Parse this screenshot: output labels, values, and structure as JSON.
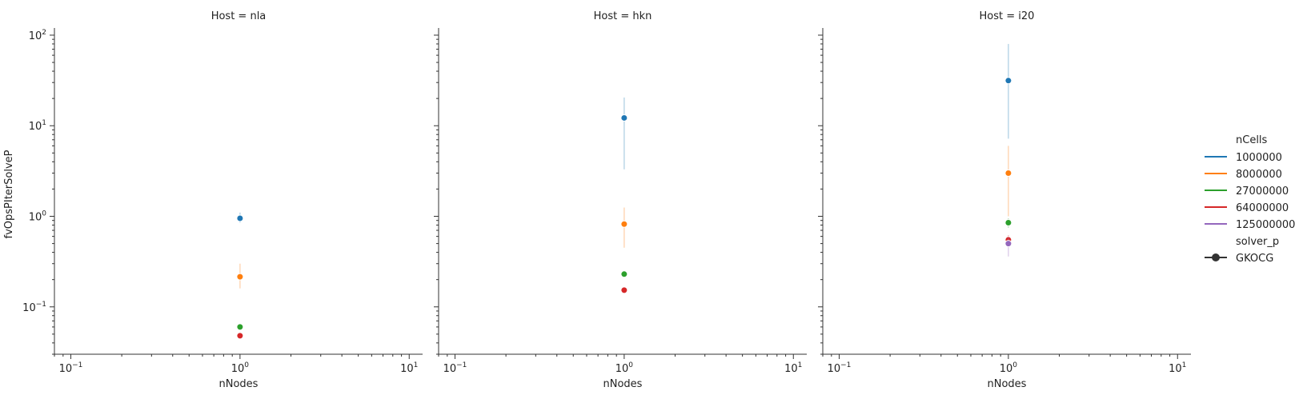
{
  "chart_data": {
    "type": "scatter",
    "x_scale": "log",
    "y_scale": "log",
    "xlim": [
      0.08,
      12
    ],
    "ylim": [
      0.03,
      120
    ],
    "xlabel": "nNodes",
    "ylabel": "fvOpsPIterSolveP",
    "x_ticks": [
      {
        "value": 0.1,
        "base": "10",
        "exp": "−1"
      },
      {
        "value": 1,
        "base": "10",
        "exp": "0"
      },
      {
        "value": 10,
        "base": "10",
        "exp": "1"
      }
    ],
    "y_ticks": [
      {
        "value": 0.1,
        "base": "10",
        "exp": "−1"
      },
      {
        "value": 1,
        "base": "10",
        "exp": "0"
      },
      {
        "value": 10,
        "base": "10",
        "exp": "1"
      },
      {
        "value": 100,
        "base": "10",
        "exp": "2"
      }
    ],
    "grid": false,
    "legend_position": "right",
    "legend": {
      "hue_title": "nCells",
      "style_title": "solver_p",
      "style_entries": [
        {
          "label": "GKOCG",
          "color": "#333333"
        }
      ]
    },
    "series_styles": [
      {
        "name": "1000000",
        "color": "#1f77b4"
      },
      {
        "name": "8000000",
        "color": "#ff7f0e"
      },
      {
        "name": "27000000",
        "color": "#2ca02c"
      },
      {
        "name": "64000000",
        "color": "#d62728"
      },
      {
        "name": "125000000",
        "color": "#9467bd"
      }
    ],
    "panels": [
      {
        "title": "Host = nla",
        "series": [
          {
            "name": "1000000",
            "x": [
              1
            ],
            "y": [
              0.95
            ],
            "err_low": [
              0.85
            ],
            "err_high": [
              1.1
            ]
          },
          {
            "name": "8000000",
            "x": [
              1
            ],
            "y": [
              0.215
            ],
            "err_low": [
              0.16
            ],
            "err_high": [
              0.3
            ]
          },
          {
            "name": "27000000",
            "x": [
              1
            ],
            "y": [
              0.06
            ],
            "err_low": [
              0.057
            ],
            "err_high": [
              0.063
            ]
          },
          {
            "name": "64000000",
            "x": [
              1
            ],
            "y": [
              0.048
            ],
            "err_low": [
              0.046
            ],
            "err_high": [
              0.05
            ]
          }
        ]
      },
      {
        "title": "Host = hkn",
        "series": [
          {
            "name": "1000000",
            "x": [
              1
            ],
            "y": [
              12.2
            ],
            "err_low": [
              3.3
            ],
            "err_high": [
              20.5
            ]
          },
          {
            "name": "8000000",
            "x": [
              1
            ],
            "y": [
              0.82
            ],
            "err_low": [
              0.45
            ],
            "err_high": [
              1.25
            ]
          },
          {
            "name": "27000000",
            "x": [
              1
            ],
            "y": [
              0.23
            ],
            "err_low": [
              0.22
            ],
            "err_high": [
              0.24
            ]
          },
          {
            "name": "64000000",
            "x": [
              1
            ],
            "y": [
              0.153
            ],
            "err_low": [
              0.148
            ],
            "err_high": [
              0.158
            ]
          }
        ]
      },
      {
        "title": "Host = i20",
        "series": [
          {
            "name": "1000000",
            "x": [
              1
            ],
            "y": [
              31.5
            ],
            "err_low": [
              7.2
            ],
            "err_high": [
              80
            ]
          },
          {
            "name": "8000000",
            "x": [
              1
            ],
            "y": [
              3.0
            ],
            "err_low": [
              1.0
            ],
            "err_high": [
              6.0
            ]
          },
          {
            "name": "27000000",
            "x": [
              1
            ],
            "y": [
              0.85
            ],
            "err_low": [
              0.75
            ],
            "err_high": [
              0.95
            ]
          },
          {
            "name": "64000000",
            "x": [
              1
            ],
            "y": [
              0.55
            ],
            "err_low": [
              0.5
            ],
            "err_high": [
              0.62
            ]
          },
          {
            "name": "125000000",
            "x": [
              1
            ],
            "y": [
              0.5
            ],
            "err_low": [
              0.36
            ],
            "err_high": [
              0.58
            ]
          }
        ]
      }
    ]
  }
}
